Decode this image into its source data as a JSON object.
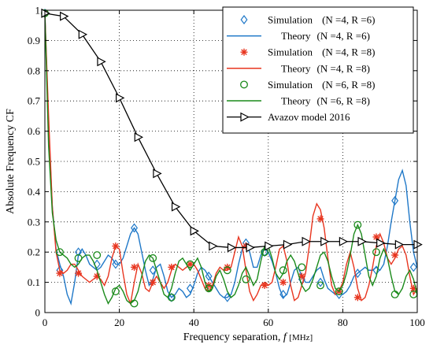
{
  "chart_data": {
    "type": "line",
    "xlabel": "Frequency separation,",
    "xlabel_var": "f",
    "xlabel_unit": "[MHz]",
    "ylabel": "Absolute Frequency CF",
    "xlim": [
      0,
      100
    ],
    "ylim": [
      0,
      1
    ],
    "xticks": [
      "0",
      "20",
      "40",
      "60",
      "80",
      "100"
    ],
    "xtick_values": [
      0,
      20,
      40,
      60,
      80,
      100
    ],
    "yticks": [
      "0",
      "0.1",
      "0.2",
      "0.3",
      "0.4",
      "0.5",
      "0.6",
      "0.7",
      "0.8",
      "0.9",
      "1"
    ],
    "ytick_values": [
      0,
      0.1,
      0.2,
      0.3,
      0.4,
      0.5,
      0.6,
      0.7,
      0.8,
      0.9,
      1
    ],
    "grid": true,
    "legend_placement": "top-right",
    "theory_x": [
      0,
      1,
      2,
      3,
      4,
      5,
      6,
      7,
      8,
      9,
      10,
      11,
      12,
      13,
      14,
      15,
      16,
      17,
      18,
      19,
      20,
      21,
      22,
      23,
      24,
      25,
      26,
      27,
      28,
      29,
      30,
      31,
      32,
      33,
      34,
      35,
      36,
      37,
      38,
      39,
      40,
      41,
      42,
      43,
      44,
      45,
      46,
      47,
      48,
      49,
      50,
      51,
      52,
      53,
      54,
      55,
      56,
      57,
      58,
      59,
      60,
      61,
      62,
      63,
      64,
      65,
      66,
      67,
      68,
      69,
      70,
      71,
      72,
      73,
      74,
      75,
      76,
      77,
      78,
      79,
      80,
      81,
      82,
      83,
      84,
      85,
      86,
      87,
      88,
      89,
      90,
      91,
      92,
      93,
      94,
      95,
      96,
      97,
      98,
      99,
      100
    ],
    "series": [
      {
        "name": "Simulation (N=4, R=6)",
        "label_main": "Simulation",
        "label_params": "(N =4, R =6)",
        "kind": "markers",
        "marker": "diamond",
        "color": "#1f78c8",
        "x": [
          0,
          4,
          9,
          14,
          19,
          24,
          29,
          34,
          39,
          44,
          49,
          54,
          59,
          64,
          69,
          74,
          79,
          84,
          89,
          94,
          99
        ],
        "y": [
          0.99,
          0.14,
          0.2,
          0.16,
          0.16,
          0.28,
          0.14,
          0.05,
          0.08,
          0.12,
          0.05,
          0.23,
          0.2,
          0.06,
          0.11,
          0.1,
          0.06,
          0.13,
          0.14,
          0.37,
          0.15
        ]
      },
      {
        "name": "Theory (N=4, R=6)",
        "label_main": "Theory",
        "label_params": "(N =4, R =6)",
        "kind": "line",
        "color": "#1f78c8",
        "y": [
          0.99,
          0.62,
          0.35,
          0.21,
          0.16,
          0.12,
          0.06,
          0.03,
          0.1,
          0.19,
          0.21,
          0.19,
          0.16,
          0.15,
          0.14,
          0.15,
          0.17,
          0.19,
          0.18,
          0.16,
          0.16,
          0.18,
          0.22,
          0.26,
          0.28,
          0.26,
          0.2,
          0.14,
          0.09,
          0.11,
          0.15,
          0.16,
          0.12,
          0.07,
          0.05,
          0.06,
          0.08,
          0.07,
          0.05,
          0.06,
          0.09,
          0.13,
          0.15,
          0.14,
          0.12,
          0.1,
          0.08,
          0.06,
          0.05,
          0.05,
          0.06,
          0.1,
          0.16,
          0.21,
          0.23,
          0.2,
          0.15,
          0.15,
          0.19,
          0.21,
          0.2,
          0.17,
          0.13,
          0.08,
          0.05,
          0.06,
          0.1,
          0.14,
          0.15,
          0.12,
          0.1,
          0.1,
          0.12,
          0.14,
          0.15,
          0.11,
          0.08,
          0.07,
          0.06,
          0.07,
          0.06,
          0.07,
          0.09,
          0.12,
          0.13,
          0.14,
          0.15,
          0.14,
          0.14,
          0.15,
          0.14,
          0.16,
          0.22,
          0.3,
          0.37,
          0.44,
          0.47,
          0.42,
          0.3,
          0.2,
          0.15
        ]
      },
      {
        "name": "Simulation (N=4, R=8)",
        "label_main": "Simulation",
        "label_params": "(N =4, R =8)",
        "kind": "markers",
        "marker": "asterisk",
        "color": "#e8351f",
        "x": [
          0,
          4,
          9,
          14,
          19,
          24,
          29,
          34,
          39,
          44,
          49,
          54,
          59,
          64,
          69,
          74,
          79,
          84,
          89,
          94,
          99
        ],
        "y": [
          0.99,
          0.13,
          0.13,
          0.12,
          0.22,
          0.15,
          0.1,
          0.15,
          0.16,
          0.09,
          0.15,
          0.22,
          0.09,
          0.1,
          0.12,
          0.31,
          0.07,
          0.05,
          0.25,
          0.19,
          0.08
        ]
      },
      {
        "name": "Theory (N=4, R=8)",
        "label_main": "Theory",
        "label_params": "(N =4, R =8)",
        "kind": "line",
        "color": "#e8351f",
        "y": [
          0.99,
          0.65,
          0.35,
          0.2,
          0.14,
          0.13,
          0.14,
          0.16,
          0.16,
          0.14,
          0.12,
          0.11,
          0.1,
          0.11,
          0.12,
          0.11,
          0.09,
          0.12,
          0.18,
          0.22,
          0.21,
          0.13,
          0.06,
          0.03,
          0.1,
          0.16,
          0.13,
          0.08,
          0.07,
          0.1,
          0.12,
          0.1,
          0.08,
          0.1,
          0.14,
          0.16,
          0.15,
          0.14,
          0.15,
          0.16,
          0.16,
          0.14,
          0.11,
          0.08,
          0.07,
          0.09,
          0.13,
          0.15,
          0.14,
          0.14,
          0.15,
          0.2,
          0.25,
          0.22,
          0.14,
          0.07,
          0.04,
          0.06,
          0.09,
          0.1,
          0.09,
          0.1,
          0.15,
          0.21,
          0.22,
          0.17,
          0.09,
          0.04,
          0.05,
          0.09,
          0.13,
          0.22,
          0.32,
          0.36,
          0.34,
          0.28,
          0.18,
          0.09,
          0.06,
          0.07,
          0.1,
          0.16,
          0.2,
          0.15,
          0.08,
          0.04,
          0.05,
          0.09,
          0.15,
          0.22,
          0.26,
          0.23,
          0.18,
          0.16,
          0.18,
          0.21,
          0.22,
          0.19,
          0.12,
          0.06,
          0.08
        ]
      },
      {
        "name": "Simulation (N=6, R=8)",
        "label_main": "Simulation",
        "label_params": "(N =6, R =8)",
        "kind": "markers",
        "marker": "circle",
        "color": "#1a8a1a",
        "x": [
          0,
          4,
          9,
          14,
          19,
          24,
          29,
          34,
          39,
          44,
          49,
          54,
          59,
          64,
          69,
          74,
          79,
          84,
          89,
          94,
          99
        ],
        "y": [
          0.99,
          0.2,
          0.18,
          0.19,
          0.07,
          0.03,
          0.18,
          0.05,
          0.16,
          0.08,
          0.14,
          0.11,
          0.2,
          0.14,
          0.15,
          0.09,
          0.07,
          0.29,
          0.2,
          0.06,
          0.06
        ]
      },
      {
        "name": "Theory (N=6, R=8)",
        "label_main": "Theory",
        "label_params": "(N =6, R =8)",
        "kind": "line",
        "color": "#1a8a1a",
        "y": [
          0.99,
          0.55,
          0.33,
          0.24,
          0.2,
          0.19,
          0.18,
          0.16,
          0.15,
          0.16,
          0.18,
          0.19,
          0.19,
          0.17,
          0.14,
          0.1,
          0.06,
          0.03,
          0.05,
          0.08,
          0.09,
          0.07,
          0.04,
          0.03,
          0.04,
          0.07,
          0.12,
          0.17,
          0.19,
          0.18,
          0.14,
          0.1,
          0.06,
          0.05,
          0.08,
          0.13,
          0.17,
          0.18,
          0.16,
          0.14,
          0.16,
          0.18,
          0.15,
          0.1,
          0.07,
          0.08,
          0.12,
          0.14,
          0.11,
          0.07,
          0.05,
          0.06,
          0.09,
          0.13,
          0.15,
          0.12,
          0.09,
          0.11,
          0.17,
          0.22,
          0.22,
          0.18,
          0.13,
          0.11,
          0.13,
          0.17,
          0.19,
          0.17,
          0.13,
          0.09,
          0.07,
          0.08,
          0.11,
          0.15,
          0.19,
          0.2,
          0.17,
          0.12,
          0.08,
          0.07,
          0.09,
          0.13,
          0.19,
          0.26,
          0.29,
          0.26,
          0.19,
          0.12,
          0.09,
          0.12,
          0.18,
          0.21,
          0.18,
          0.12,
          0.07,
          0.06,
          0.08,
          0.12,
          0.14,
          0.11,
          0.06
        ]
      },
      {
        "name": "Avazov model 2016",
        "label_main": "Avazov model 2016",
        "label_params": "",
        "kind": "line-markers",
        "marker": "triangle-right",
        "color": "#000000",
        "x": [
          0,
          5,
          10,
          15,
          20,
          25,
          30,
          35,
          40,
          45,
          50,
          55,
          60,
          65,
          70,
          75,
          80,
          85,
          90,
          95,
          100
        ],
        "y": [
          0.99,
          0.98,
          0.92,
          0.83,
          0.71,
          0.58,
          0.46,
          0.35,
          0.27,
          0.22,
          0.215,
          0.215,
          0.22,
          0.225,
          0.235,
          0.235,
          0.235,
          0.235,
          0.23,
          0.225,
          0.225
        ]
      }
    ]
  }
}
